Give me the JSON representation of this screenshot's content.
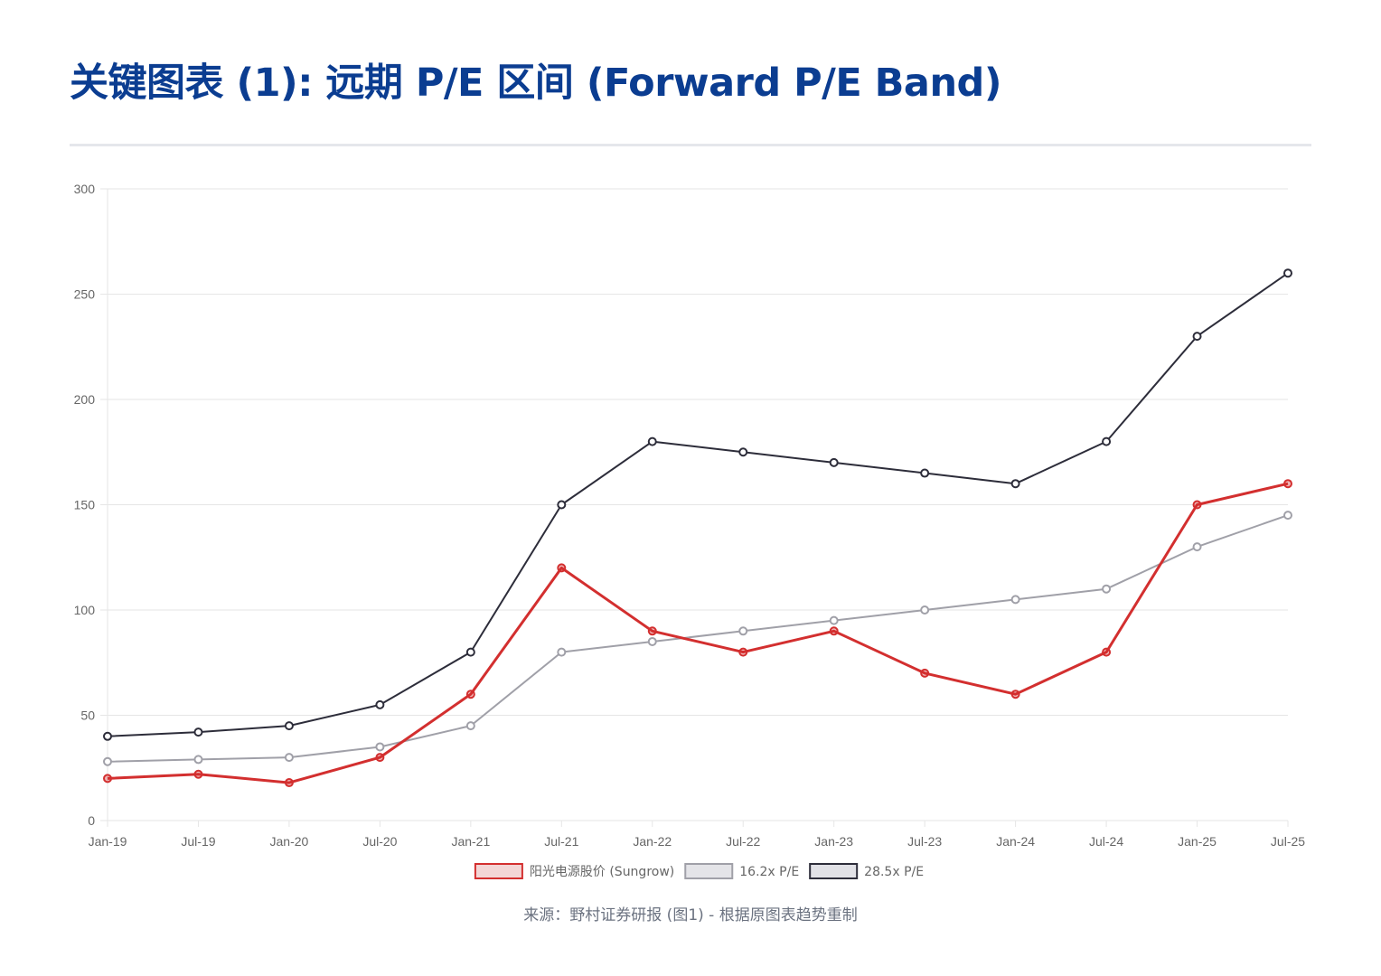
{
  "header": {
    "title": "关键图表 (1): 远期 P/E 区间 (Forward P/E Band)"
  },
  "footer": {
    "source": "来源：野村证券研报 (图1) - 根据原图表趋势重制"
  },
  "colors": {
    "title": "#0b3d91",
    "sungrow": "#d32f2f",
    "pe_low": "#a0a0a8",
    "pe_high": "#2d2d3a",
    "grid": "#e6e6e6",
    "axis_text": "#666666"
  },
  "chart_data": {
    "type": "line",
    "title": "关键图表 (1): 远期 P/E 区间 (Forward P/E Band)",
    "xlabel": "",
    "ylabel": "",
    "ylim": [
      0,
      300
    ],
    "yticks": [
      0,
      50,
      100,
      150,
      200,
      250,
      300
    ],
    "grid": true,
    "legend_position": "bottom-center",
    "categories": [
      "Jan-19",
      "Jul-19",
      "Jan-20",
      "Jul-20",
      "Jan-21",
      "Jul-21",
      "Jan-22",
      "Jul-22",
      "Jan-23",
      "Jul-23",
      "Jan-24",
      "Jul-24",
      "Jan-25",
      "Jul-25"
    ],
    "series": [
      {
        "key": "sungrow",
        "name": "阳光电源股价 (Sungrow)",
        "color": "#d32f2f",
        "legend_fill": "#f3d6d6",
        "values": [
          20,
          22,
          18,
          30,
          60,
          120,
          90,
          80,
          90,
          70,
          60,
          80,
          150,
          160
        ]
      },
      {
        "key": "pe-16-2x",
        "name": "16.2x P/E",
        "color": "#a0a0a8",
        "legend_fill": "#e4e4e8",
        "values": [
          28,
          29,
          30,
          35,
          45,
          80,
          85,
          90,
          95,
          100,
          105,
          110,
          130,
          145
        ]
      },
      {
        "key": "pe-28-5x",
        "name": "28.5x P/E",
        "color": "#2d2d3a",
        "legend_fill": "#e1e1e6",
        "values": [
          40,
          42,
          45,
          55,
          80,
          150,
          180,
          175,
          170,
          165,
          160,
          180,
          230,
          260
        ]
      }
    ]
  }
}
